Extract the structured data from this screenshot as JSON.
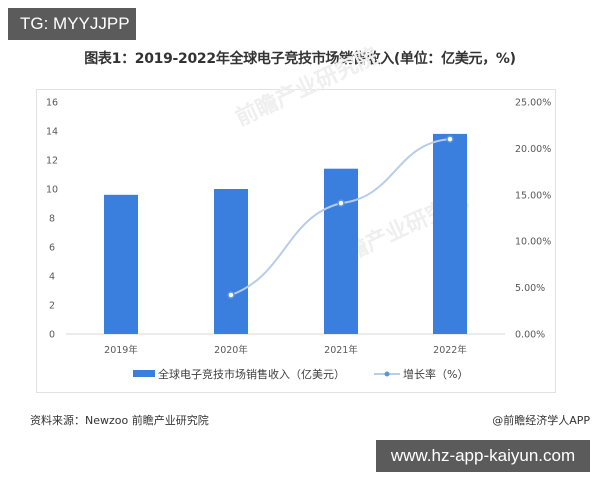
{
  "overlay": {
    "top_badge": "TG: MYYJJPP",
    "bottom_badge": "www.hz-app-kaiyun.com"
  },
  "header": {
    "title": "图表1：2019-2022年全球电子竞技市场销售收入(单位：亿美元，%)"
  },
  "footer": {
    "source": "资料来源：Newzoo 前瞻产业研究院",
    "credit": "@前瞻经济学人APP"
  },
  "watermark": "前瞻产业研究院",
  "colors": {
    "bar": "#3a7fde",
    "line": "#b7cde9",
    "marker": "#5b95dc"
  },
  "chart_data": {
    "type": "bar",
    "title": "图表1：2019-2022年全球电子竞技市场销售收入(单位：亿美元，%)",
    "categories": [
      "2019年",
      "2020年",
      "2021年",
      "2022年"
    ],
    "series": [
      {
        "name": "全球电子竞技市场销售收入（亿美元）",
        "type": "bar",
        "axis": "left",
        "values": [
          9.6,
          10.0,
          11.4,
          13.8
        ]
      },
      {
        "name": "增长率（%）",
        "type": "line",
        "axis": "right",
        "values": [
          null,
          4.2,
          14.1,
          21.0
        ]
      }
    ],
    "left_axis": {
      "ylim": [
        0,
        16
      ],
      "ticks": [
        "0",
        "2",
        "4",
        "6",
        "8",
        "10",
        "12",
        "14",
        "16"
      ]
    },
    "right_axis": {
      "ylim": [
        0,
        25
      ],
      "ticks": [
        "0.00%",
        "5.00%",
        "10.00%",
        "15.00%",
        "20.00%",
        "25.00%"
      ]
    },
    "xlabel": "",
    "ylabel": "",
    "grid": false,
    "legend_position": "bottom",
    "legend": [
      "全球电子竞技市场销售收入（亿美元）",
      "增长率（%）"
    ]
  }
}
